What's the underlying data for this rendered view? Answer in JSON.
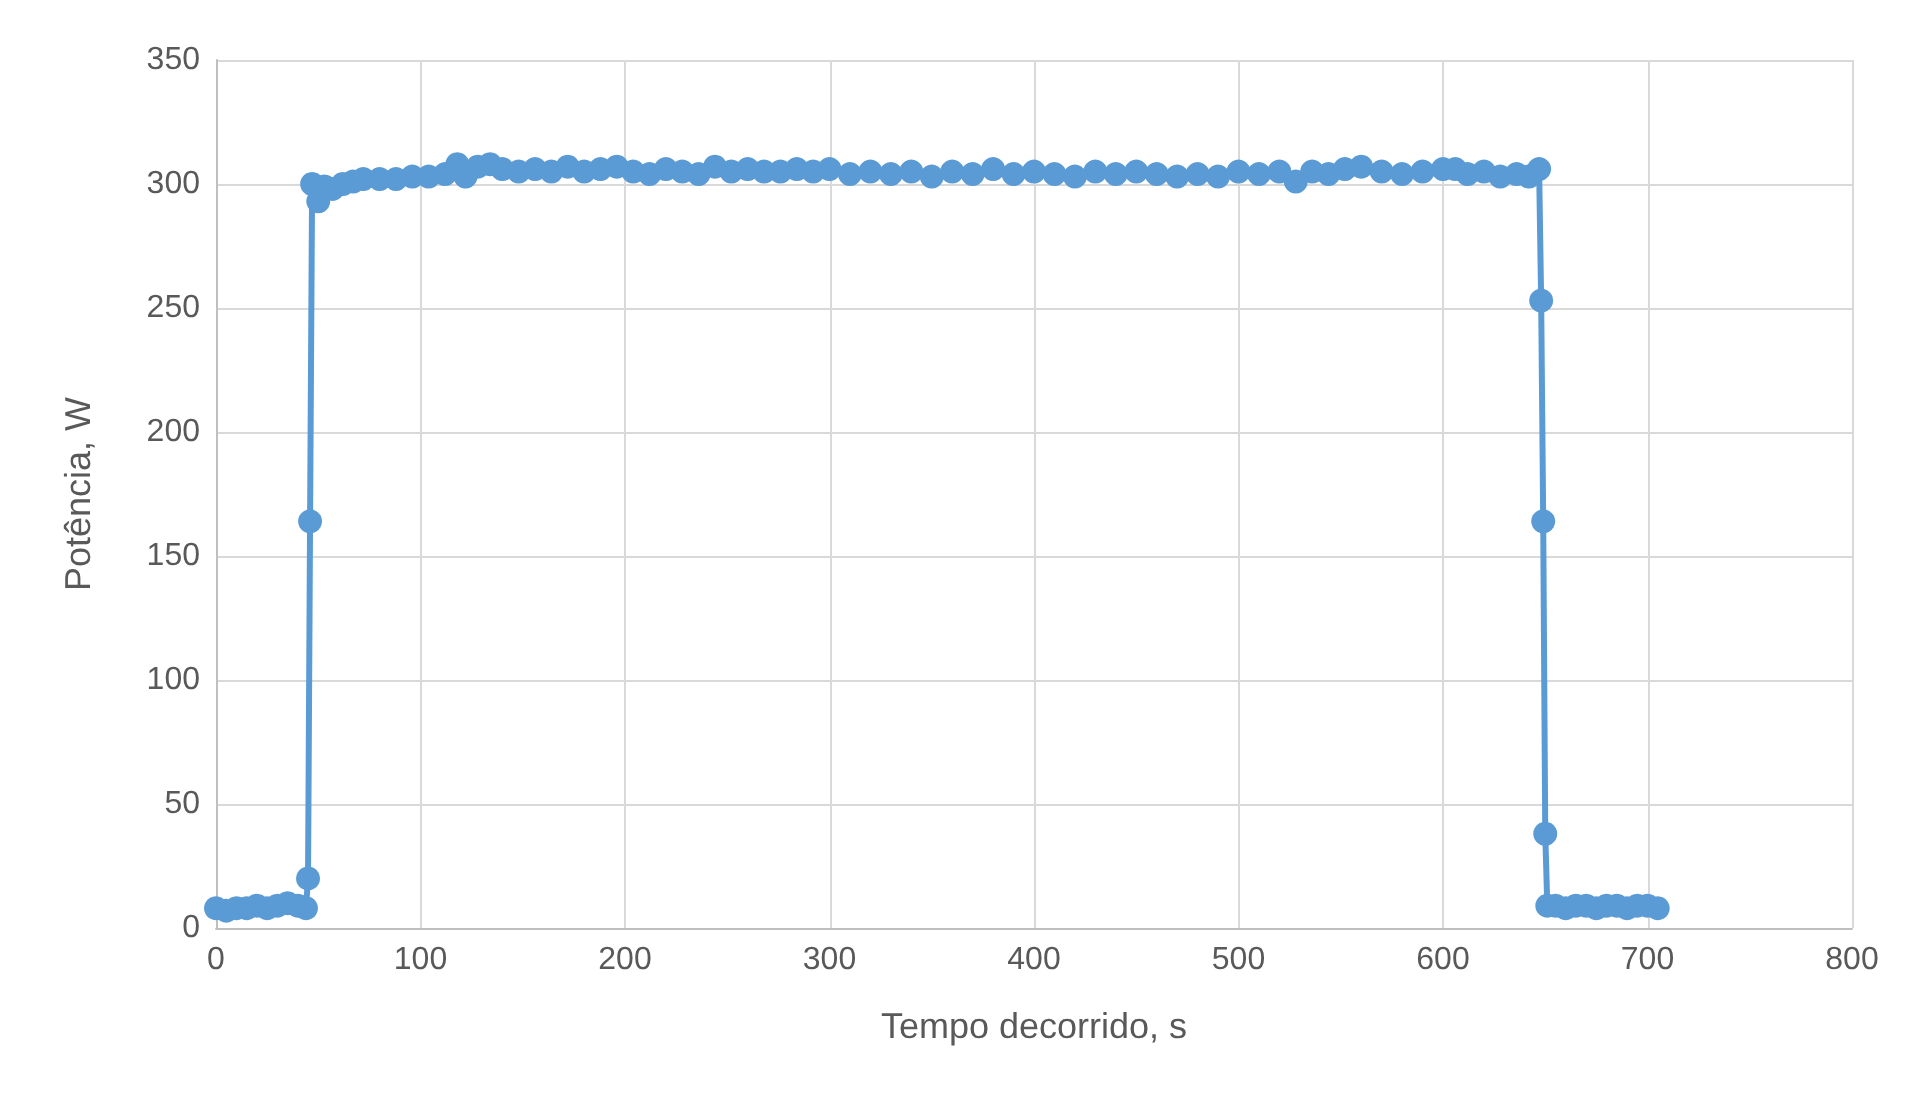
{
  "chart_data": {
    "type": "line",
    "xlabel": "Tempo decorrido, s",
    "ylabel": "Potência, W",
    "marker": "circle",
    "line_style": "solid",
    "grid": true,
    "xlim": [
      0,
      800
    ],
    "xticks": [
      0,
      100,
      200,
      300,
      400,
      500,
      600,
      700,
      800
    ],
    "ylim": [
      0,
      350
    ],
    "yticks": [
      0,
      50,
      100,
      150,
      200,
      250,
      300,
      350
    ],
    "series": [
      {
        "color": "#5b9bd5",
        "x": [
          0,
          5,
          10,
          15,
          20,
          25,
          30,
          35,
          40,
          44,
          45,
          46,
          47,
          50,
          53,
          57,
          62,
          67,
          72,
          80,
          88,
          96,
          104,
          112,
          118,
          122,
          128,
          134,
          140,
          148,
          156,
          164,
          172,
          180,
          188,
          196,
          204,
          212,
          220,
          228,
          236,
          244,
          252,
          260,
          268,
          276,
          284,
          292,
          300,
          310,
          320,
          330,
          340,
          350,
          360,
          370,
          380,
          390,
          400,
          410,
          420,
          430,
          440,
          450,
          460,
          470,
          480,
          490,
          500,
          510,
          520,
          528,
          536,
          544,
          552,
          560,
          570,
          580,
          590,
          600,
          606,
          612,
          620,
          628,
          636,
          642,
          647,
          648,
          649,
          650,
          651,
          655,
          660,
          665,
          670,
          675,
          680,
          685,
          690,
          695,
          700,
          705
        ],
        "values": [
          8,
          7,
          8,
          8,
          9,
          8,
          9,
          10,
          9,
          8,
          20,
          164,
          300,
          293,
          299,
          298,
          300,
          301,
          302,
          302,
          302,
          303,
          303,
          304,
          308,
          303,
          307,
          308,
          306,
          305,
          306,
          305,
          307,
          305,
          306,
          307,
          305,
          304,
          306,
          305,
          304,
          307,
          305,
          306,
          305,
          305,
          306,
          305,
          306,
          304,
          305,
          304,
          305,
          303,
          305,
          304,
          306,
          304,
          305,
          304,
          303,
          305,
          304,
          305,
          304,
          303,
          304,
          303,
          305,
          304,
          305,
          301,
          305,
          304,
          306,
          307,
          305,
          304,
          305,
          306,
          306,
          304,
          305,
          303,
          304,
          303,
          306,
          253,
          164,
          38,
          9,
          9,
          8,
          9,
          9,
          8,
          9,
          9,
          8,
          9,
          9,
          8
        ]
      }
    ]
  }
}
